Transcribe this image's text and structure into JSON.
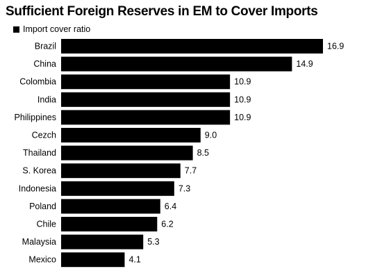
{
  "chart_data": {
    "type": "bar",
    "orientation": "horizontal",
    "title": "Sufficient Foreign Reserves in EM to Cover Imports",
    "legend": "top-left",
    "grid": false,
    "categories": [
      "Brazil",
      "China",
      "Colombia",
      "India",
      "Philippines",
      "Cezch",
      "Thailand",
      "S. Korea",
      "Indonesia",
      "Poland",
      "Chile",
      "Malaysia",
      "Mexico"
    ],
    "series": [
      {
        "name": "Import cover ratio",
        "color": "#000000",
        "values": [
          16.9,
          14.9,
          10.9,
          10.9,
          10.9,
          9.0,
          8.5,
          7.7,
          7.3,
          6.4,
          6.2,
          5.3,
          4.1
        ],
        "labels": [
          "16.9",
          "14.9",
          "10.9",
          "10.9",
          "10.9",
          "9.0",
          "8.5",
          "7.7",
          "7.3",
          "6.4",
          "6.2",
          "5.3",
          "4.1"
        ]
      }
    ],
    "xlim": [
      0,
      16.9
    ]
  }
}
